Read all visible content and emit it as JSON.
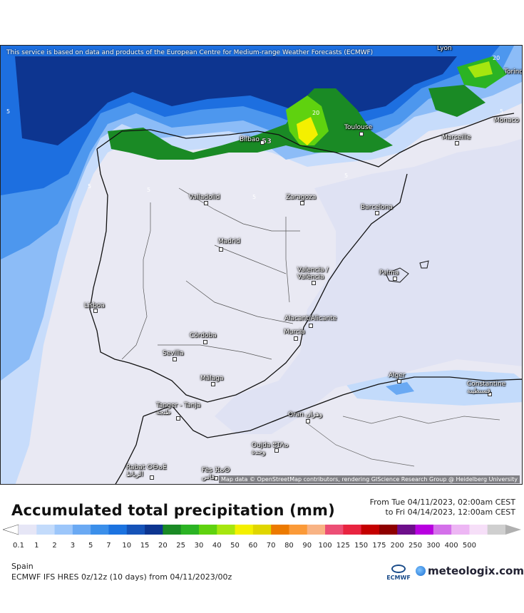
{
  "map": {
    "notice": "This service is based on data and products of the European Centre for Medium-range Weather Forecasts (ECMWF)",
    "attribution": "Map data © OpenStreetMap contributors, rendering GIScience Research Group @ Heidelberg University",
    "contour_labels": [
      "5",
      "5",
      "5",
      "20",
      "5",
      "5",
      "5",
      "53",
      "20"
    ],
    "cities": [
      {
        "name": "Lyon"
      },
      {
        "name": "Torino"
      },
      {
        "name": "Monaco"
      },
      {
        "name": "Marseille"
      },
      {
        "name": "Toulouse"
      },
      {
        "name": "Bilbao"
      },
      {
        "name": "Valladolid"
      },
      {
        "name": "Zaragoza"
      },
      {
        "name": "Barcelona"
      },
      {
        "name": "Madrid"
      },
      {
        "name": "Valencia / València"
      },
      {
        "name": "Palma"
      },
      {
        "name": "Lisboa"
      },
      {
        "name": "Alacant/Alicante"
      },
      {
        "name": "Murcia"
      },
      {
        "name": "Córdoba"
      },
      {
        "name": "Sevilla"
      },
      {
        "name": "Málaga"
      },
      {
        "name": "Alger"
      },
      {
        "name": "Constantine قسنطينة"
      },
      {
        "name": "Tanger - Tanja طنجة"
      },
      {
        "name": "Oran وهران"
      },
      {
        "name": "Oujda ⵓⵊⴷⴰ وجدة"
      },
      {
        "name": "Rabat ⵔⴱⴰⵟ الرباط"
      },
      {
        "name": "Fès ⴼⴰⵙ فاس"
      }
    ]
  },
  "header": {
    "title": "Accumulated total precipitation (mm)",
    "from": "From Tue 04/11/2023, 02:00am CEST",
    "to": "to Fri 04/14/2023, 12:00am CEST"
  },
  "legend": {
    "labels": [
      "0.1",
      "1",
      "2",
      "3",
      "5",
      "7",
      "10",
      "15",
      "20",
      "25",
      "30",
      "40",
      "50",
      "60",
      "70",
      "80",
      "90",
      "100",
      "125",
      "150",
      "175",
      "200",
      "250",
      "300",
      "400",
      "500"
    ],
    "colors": [
      "#e6e6f6",
      "#c3dbfb",
      "#9cc6fa",
      "#6aa9f3",
      "#3b8fea",
      "#1c73e0",
      "#1653b8",
      "#0d3590",
      "#1a8a25",
      "#2bb324",
      "#5fd20f",
      "#a6e60f",
      "#f4f000",
      "#e0d600",
      "#ec7a00",
      "#fb9a38",
      "#f8b384",
      "#ec4f75",
      "#e82440",
      "#c40000",
      "#8e0000",
      "#6d0e8a",
      "#b800e0",
      "#d470ea",
      "#edb6f4",
      "#f6dff8",
      "#cfcfcf"
    ],
    "under_color": "#ffffff",
    "over_color": "#b0b0b0"
  },
  "footer": {
    "region": "Spain",
    "model": "ECMWF IFS HRES 0z/12z (10 days) from 04/11/2023/00z",
    "ecmwf_label": "ECMWF",
    "brand": "meteologix.com"
  }
}
